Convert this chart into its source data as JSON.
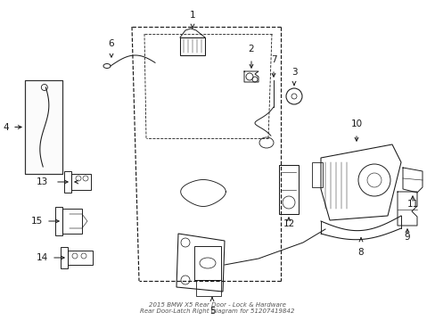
{
  "bg_color": "#ffffff",
  "line_color": "#1a1a1a",
  "lw": 0.85,
  "fs": 7.5,
  "title": "2015 BMW X5 Rear Door - Lock & Hardware\nRear Door-Latch Right Diagram for 51207419842"
}
